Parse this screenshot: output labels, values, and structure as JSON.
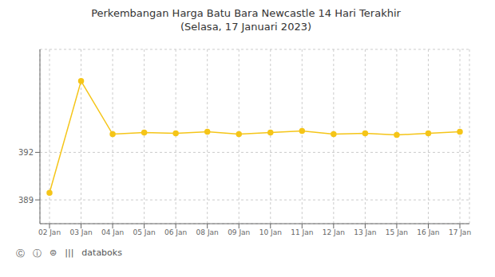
{
  "chart_data": {
    "type": "line",
    "title": "Perkembangan Harga Batu Bara Newcastle 14 Hari Terakhir\n(Selasa, 17 Januari 2023)",
    "categories": [
      "02 Jan",
      "03 Jan",
      "04 Jan",
      "05 Jan",
      "06 Jan",
      "08 Jan",
      "09 Jan",
      "10 Jan",
      "11 Jan",
      "12 Jan",
      "13 Jan",
      "15 Jan",
      "16 Jan",
      "17 Jan"
    ],
    "values": [
      389.45,
      396.5,
      393.15,
      393.25,
      393.2,
      393.3,
      393.15,
      393.25,
      393.35,
      393.15,
      393.2,
      393.1,
      393.2,
      393.3
    ],
    "ylim": [
      387.5,
      398.5
    ],
    "yticks": [
      389,
      392
    ],
    "grid": true,
    "color": "#F5C518",
    "marker": "circle",
    "annotations": [
      "Ⓒ",
      "ⓘ",
      "⊜",
      "|||",
      "databoks"
    ]
  }
}
